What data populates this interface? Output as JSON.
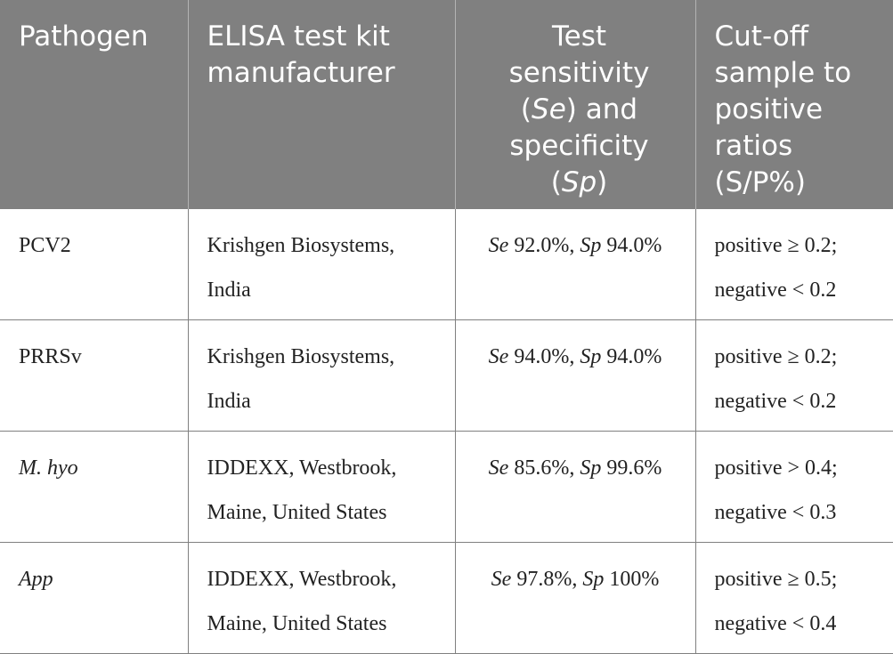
{
  "table": {
    "headers": [
      {
        "lines": [
          "Pathogen"
        ]
      },
      {
        "lines": [
          "ELISA test kit",
          "manufacturer"
        ]
      },
      {
        "lines": [
          "Test",
          "sensitivity",
          "(Se) and",
          "specificity",
          "(Sp)"
        ]
      },
      {
        "lines": [
          "Cut-off",
          "sample to",
          "positive",
          "ratios",
          "(S/P%)"
        ]
      }
    ],
    "rows": [
      {
        "pathogen": "PCV2",
        "manufacturer": [
          "Krishgen Biosystems,",
          "India"
        ],
        "se_label": "Se",
        "se_value": "92.0%,",
        "sp_label": "Sp",
        "sp_value": "94.0%",
        "cutoff": [
          "positive ≥ 0.2;",
          "negative < 0.2"
        ]
      },
      {
        "pathogen": "PRRSv",
        "manufacturer": [
          "Krishgen Biosystems,",
          "India"
        ],
        "se_label": "Se",
        "se_value": "94.0%,",
        "sp_label": "Sp",
        "sp_value": "94.0%",
        "cutoff": [
          "positive ≥ 0.2;",
          "negative < 0.2"
        ]
      },
      {
        "pathogen": "M. hyo",
        "manufacturer": [
          "IDDEXX, Westbrook,",
          "Maine, United States"
        ],
        "se_label": "Se",
        "se_value": "85.6%,",
        "sp_label": "Sp",
        "sp_value": "99.6%",
        "cutoff": [
          "positive > 0.4;",
          "negative < 0.3"
        ]
      },
      {
        "pathogen": "App",
        "manufacturer": [
          "IDDEXX, Westbrook,",
          "Maine, United States"
        ],
        "se_label": "Se",
        "se_value": "97.8%,",
        "sp_label": "Sp",
        "sp_value": "100%",
        "cutoff": [
          "positive ≥ 0.5;",
          "negative < 0.4"
        ]
      }
    ]
  }
}
